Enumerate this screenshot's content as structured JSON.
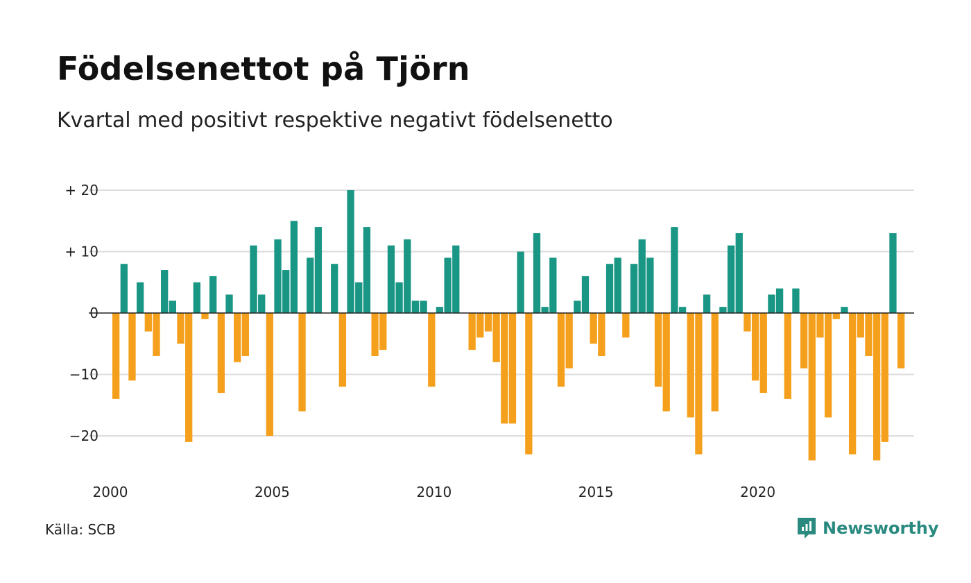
{
  "title": "Födelsenettot på Tjörn",
  "subtitle": "Kvartal med positivt respektive negativt födelsenetto",
  "source": "Källa: SCB",
  "brand": "Newsworthy",
  "colors": {
    "positive": "#1a9685",
    "negative": "#f5a01c",
    "grid": "#dddddd",
    "axis": "#222222",
    "brand": "#2a8a80"
  },
  "chart_data": {
    "type": "bar",
    "title": "Födelsenettot på Tjörn",
    "subtitle": "Kvartal med positivt respektive negativt födelsenetto",
    "xlabel": "",
    "ylabel": "",
    "x_start": "2000 Q1",
    "x_ticks": [
      "2000",
      "2005",
      "2010",
      "2015",
      "2020"
    ],
    "y_ticks": [
      {
        "value": 20,
        "label": "+ 20"
      },
      {
        "value": 10,
        "label": "+ 10"
      },
      {
        "value": 0,
        "label": "0"
      },
      {
        "value": -10,
        "label": "−10"
      },
      {
        "value": -20,
        "label": "−20"
      }
    ],
    "ylim": [
      -26,
      21
    ],
    "grid": true,
    "series": [
      {
        "values": [
          -14,
          8,
          -11,
          5,
          -3,
          -7,
          7,
          2,
          -5,
          -21,
          5,
          -1,
          6,
          -13,
          3,
          -8,
          -7,
          11,
          3,
          -20,
          12,
          7,
          15,
          -16,
          9,
          14,
          0,
          8,
          -12,
          20,
          5,
          14,
          -7,
          -6,
          11,
          5,
          12,
          2,
          2,
          -12,
          1,
          9,
          11,
          0,
          -6,
          -4,
          -3,
          -8,
          -18,
          -18,
          10,
          -23,
          13,
          1,
          9,
          -12,
          -9,
          2,
          6,
          -5,
          -7,
          8,
          9,
          -4,
          8,
          12,
          9,
          -12,
          -16,
          14,
          1,
          -17,
          -23,
          3,
          -16,
          1,
          11,
          13,
          -3,
          -11,
          -13,
          3,
          4,
          -14,
          4,
          -9,
          -24,
          -4,
          -17,
          -1,
          1,
          -23,
          -4,
          -7,
          -24,
          -21,
          13,
          -9
        ]
      }
    ]
  }
}
